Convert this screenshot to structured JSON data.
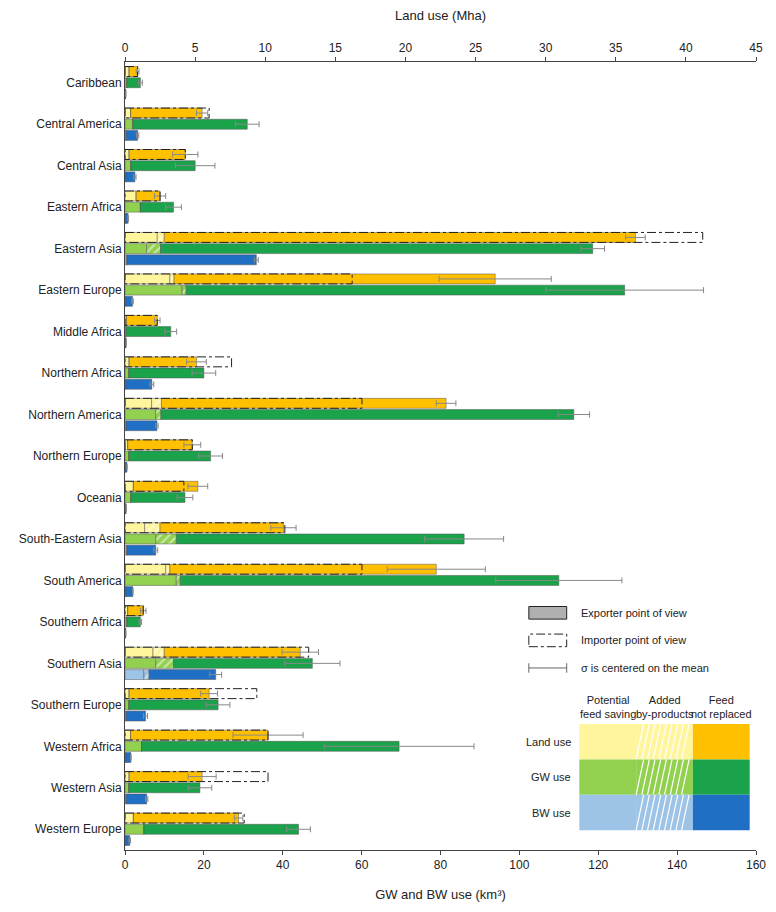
{
  "chart_data": {
    "type": "bar",
    "orientation": "horizontal",
    "stacked": true,
    "grid": false,
    "xlabel": "GW and BW use (km³)",
    "x2label": "Land use (Mha)",
    "xlim": [
      0,
      160
    ],
    "xticks": [
      0,
      20,
      40,
      60,
      80,
      100,
      120,
      140,
      160
    ],
    "x2lim": [
      0,
      45
    ],
    "x2ticks": [
      0,
      5,
      10,
      15,
      20,
      25,
      30,
      35,
      40,
      45
    ],
    "categories": [
      "Caribbean",
      "Central America",
      "Central Asia",
      "Eastern Africa",
      "Eastern Asia",
      "Eastern Europe",
      "Middle Africa",
      "Northern Africa",
      "Northern America",
      "Northern Europe",
      "Oceania",
      "South-Eastern Asia",
      "South America",
      "Southern Africa",
      "Southern Asia",
      "Southern Europe",
      "Western Africa",
      "Western Asia",
      "Western Europe"
    ],
    "legend_labels": {
      "exporter": "Exporter point of view",
      "importer": "Importer point of view",
      "sigma": "σ is centered on the mean"
    },
    "groups": [
      {
        "name": "Land use",
        "axis": "x2",
        "series": [
          {
            "name": "Potential feed saving",
            "color": "#fff59d",
            "values": [
              0.3,
              0.4,
              0.3,
              0.8,
              2.3,
              3.2,
              0.1,
              0.3,
              1.9,
              0.2,
              0.6,
              1.4,
              2.9,
              0.2,
              2.0,
              0.3,
              0.4,
              0.3,
              0.6
            ]
          },
          {
            "name": "Added by-products",
            "color": "#fff59d",
            "marker": "hatched",
            "values": [
              0,
              0,
              0,
              0,
              0.5,
              0.3,
              0,
              0,
              0.7,
              0,
              0,
              1.1,
              0.3,
              0,
              0.8,
              0,
              0,
              0,
              0
            ]
          },
          {
            "name": "Feed not replaced",
            "color": "#ffc000",
            "values": [
              0.6,
              5.1,
              4.0,
              1.7,
              33.6,
              22.9,
              2.2,
              4.8,
              20.3,
              4.6,
              4.6,
              8.8,
              19,
              1.1,
              9.7,
              5.7,
              9.8,
              5.2,
              7.5
            ]
          }
        ],
        "importer": {
          "line_style": "dashdot",
          "values": [
            0.9,
            6.0,
            4.3,
            2.5,
            41.2,
            16.2,
            2.3,
            7.6,
            16.9,
            4.8,
            4.2,
            11.4,
            16.9,
            1.3,
            13.1,
            9.4,
            10.2,
            10.2,
            8.5
          ]
        },
        "sigma": [
          0.1,
          0.4,
          0.9,
          0.4,
          0.7,
          4,
          0.2,
          0.7,
          0.7,
          0.6,
          0.7,
          0.9,
          3.5,
          0.2,
          1.3,
          0.6,
          2.5,
          1,
          0.3
        ]
      },
      {
        "name": "GW use",
        "axis": "x",
        "series": [
          {
            "name": "Potential feed saving",
            "color": "#92d050",
            "values": [
              0.5,
              2,
              1.5,
              3.9,
              5.5,
              14.5,
              0.3,
              1,
              7.8,
              1,
              1.5,
              7.8,
              13,
              0.5,
              7.8,
              1,
              4.2,
              1,
              4.8
            ]
          },
          {
            "name": "Added by-products",
            "color": "#92d050",
            "marker": "hatched",
            "values": [
              0,
              0,
              0,
              0,
              3.5,
              1,
              0,
              0,
              1.3,
              0,
              0,
              5.2,
              1,
              0,
              4.5,
              0,
              0,
              0,
              0
            ]
          },
          {
            "name": "Feed not replaced",
            "color": "#1aa34a",
            "values": [
              3.4,
              29,
              16.3,
              8.4,
              109.6,
              111.2,
              11.3,
              19,
              104.7,
              20.7,
              13.7,
              73,
              96,
              3.4,
              35.2,
              22.6,
              65.3,
              18,
              39.2
            ]
          }
        ],
        "sigma": [
          0.5,
          3,
          5,
          2,
          3,
          20,
          1.5,
          3,
          4,
          3,
          2,
          10,
          16,
          0.3,
          7,
          3,
          19,
          3,
          3
        ]
      },
      {
        "name": "BW use",
        "axis": "x",
        "series": [
          {
            "name": "Potential feed saving",
            "color": "#9dc3e6",
            "values": [
              0,
              0.3,
              0.2,
              0.2,
              0.5,
              0.2,
              0,
              0.2,
              0.3,
              0,
              0,
              0.5,
              0.2,
              0,
              4.8,
              0.3,
              0.2,
              0.3,
              0.2
            ]
          },
          {
            "name": "Added by-products",
            "color": "#9dc3e6",
            "marker": "hatched",
            "values": [
              0,
              0,
              0,
              0,
              0,
              0,
              0,
              0,
              0,
              0,
              0,
              0,
              0,
              0,
              1.3,
              0,
              0,
              0,
              0
            ]
          },
          {
            "name": "Feed not replaced",
            "color": "#1f6fc5",
            "values": [
              0.2,
              2.9,
              2.3,
              0.6,
              32.8,
              1.7,
              0.3,
              6.6,
              7.8,
              0.5,
              0.3,
              7.3,
              1.8,
              0.2,
              16.9,
              4.9,
              1.3,
              5.2,
              1
            ]
          }
        ],
        "sigma": [
          0,
          0.3,
          0.3,
          0.1,
          0.5,
          0.2,
          0,
          0.5,
          0.3,
          0,
          0,
          0.5,
          0,
          0,
          1.5,
          0.5,
          0,
          0.3,
          0.2
        ]
      }
    ]
  }
}
